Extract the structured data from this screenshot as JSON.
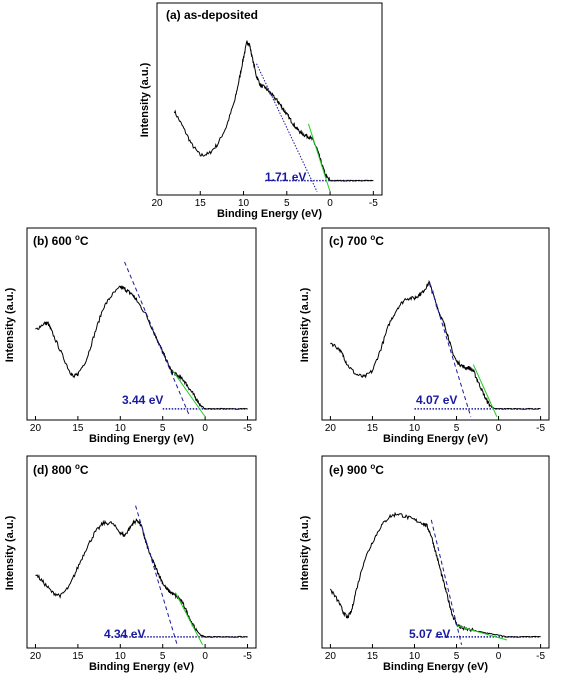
{
  "accent_colors": {
    "spectrum": "#000000",
    "fit_line": "#1a1aa0",
    "tail_line": "#22cc22",
    "gap_label": "#1a1aa0"
  },
  "chart_data": [
    {
      "type": "line",
      "title": "(a) as-deposited",
      "title_sup": "",
      "title_suffix": "",
      "xlabel": "Binding Energy (eV)",
      "ylabel": "Intensity (a.u.)",
      "xlim": [
        20,
        -6
      ],
      "xticks": [
        20,
        15,
        10,
        5,
        0,
        -5
      ],
      "ylim": [
        0,
        100
      ],
      "band_gap_label": "1.71 eV",
      "spectrum": {
        "x": [
          18,
          17,
          16,
          15,
          14,
          13,
          12,
          11,
          10.5,
          10,
          9.6,
          9.3,
          9,
          8.5,
          8,
          7.5,
          7,
          6.5,
          6,
          5.5,
          5,
          4.5,
          4,
          3.5,
          3,
          2.5,
          2,
          1.5,
          1,
          0.5,
          0,
          -1,
          -2,
          -3,
          -5
        ],
        "y": [
          48,
          38,
          27,
          20,
          21,
          27,
          38,
          55,
          68,
          82,
          92,
          90,
          82,
          70,
          64,
          63,
          60,
          57,
          54,
          50,
          46,
          42,
          38,
          35,
          33,
          32,
          30,
          24,
          15,
          7,
          4,
          4,
          4,
          4,
          4
        ]
      },
      "fit_line": {
        "x": [
          8.5,
          1.5
        ],
        "y": [
          78,
          -3
        ]
      },
      "tail_line": {
        "x": [
          2.5,
          0
        ],
        "y": [
          40,
          -3
        ]
      },
      "baseline": {
        "x": [
          7.5,
          -5
        ],
        "y": [
          4,
          4
        ]
      }
    },
    {
      "type": "line",
      "title": "(b) 600 ",
      "title_sup": "o",
      "title_suffix": "C",
      "xlabel": "Binding Energy (eV)",
      "ylabel": "Intensity (a.u.)",
      "xlim": [
        21,
        -6
      ],
      "xticks": [
        20,
        15,
        10,
        5,
        0,
        -5
      ],
      "ylim": [
        0,
        100
      ],
      "band_gap_label": "3.44 eV",
      "spectrum": {
        "x": [
          20,
          19,
          18.5,
          18,
          17,
          16,
          15.5,
          15,
          14,
          13,
          12,
          11,
          10,
          9.5,
          9,
          8.5,
          8,
          7,
          6,
          5.5,
          5,
          4.5,
          4,
          3.5,
          3,
          2.5,
          2,
          1.5,
          1,
          0.5,
          0,
          -1,
          -2,
          -3,
          -5
        ],
        "y": [
          52,
          56,
          56,
          50,
          38,
          26,
          22,
          24,
          33,
          50,
          66,
          74,
          79,
          78,
          76,
          74,
          70,
          62,
          50,
          44,
          38,
          32,
          26,
          24,
          22,
          20,
          16,
          12,
          8,
          4,
          2,
          2,
          2,
          2,
          2
        ]
      },
      "fit_line": {
        "x": [
          9.5,
          1.8
        ],
        "y": [
          95,
          -3
        ]
      },
      "tail_line": {
        "x": [
          3.8,
          0
        ],
        "y": [
          26,
          -3
        ]
      },
      "baseline": {
        "x": [
          5,
          -5
        ],
        "y": [
          2,
          2
        ]
      }
    },
    {
      "type": "line",
      "title": "(c)  700 ",
      "title_sup": "o",
      "title_suffix": "C",
      "xlabel": "Binding Energy (eV)",
      "ylabel": "Intensity (a.u.)",
      "xlim": [
        21,
        -6
      ],
      "xticks": [
        20,
        15,
        10,
        5,
        0,
        -5
      ],
      "ylim": [
        0,
        100
      ],
      "band_gap_label": "4.07 eV",
      "spectrum": {
        "x": [
          20,
          19,
          18.5,
          18,
          17,
          16,
          15,
          14,
          13,
          12,
          11,
          10,
          9.5,
          9,
          8.5,
          8.2,
          8,
          7.5,
          7,
          6.5,
          6,
          5.5,
          5,
          4.5,
          4,
          3.5,
          3,
          2.5,
          2,
          1.5,
          1,
          0.5,
          0,
          -1,
          -3,
          -5
        ],
        "y": [
          44,
          40,
          36,
          30,
          24,
          22,
          26,
          40,
          56,
          66,
          72,
          72,
          74,
          76,
          80,
          82,
          78,
          70,
          62,
          56,
          48,
          38,
          32,
          30,
          28,
          28,
          26,
          20,
          14,
          8,
          4,
          2,
          2,
          2,
          2,
          2
        ]
      },
      "fit_line": {
        "x": [
          8.2,
          3.3
        ],
        "y": [
          82,
          -3
        ]
      },
      "tail_line": {
        "x": [
          3,
          0.2
        ],
        "y": [
          30,
          -3
        ]
      },
      "baseline": {
        "x": [
          10,
          -5
        ],
        "y": [
          2,
          2
        ]
      }
    },
    {
      "type": "line",
      "title": "(d) 800 ",
      "title_sup": "o",
      "title_suffix": "C",
      "xlabel": "Binding Energy (eV)",
      "ylabel": "Intensity (a.u.)",
      "xlim": [
        21,
        -6
      ],
      "xticks": [
        20,
        15,
        10,
        5,
        0,
        -5
      ],
      "ylim": [
        0,
        100
      ],
      "band_gap_label": "4.34 eV",
      "spectrum": {
        "x": [
          20,
          19,
          18,
          17,
          16,
          15,
          14,
          13,
          12,
          11,
          10,
          9.5,
          9,
          8.5,
          8,
          7.5,
          7,
          6.5,
          6,
          5.5,
          5,
          4.5,
          4,
          3.5,
          3,
          2.5,
          2,
          1.5,
          1,
          0.5,
          0,
          -1,
          -3,
          -5
        ],
        "y": [
          42,
          36,
          30,
          28,
          34,
          46,
          58,
          68,
          74,
          74,
          68,
          66,
          70,
          74,
          76,
          72,
          62,
          54,
          48,
          42,
          36,
          32,
          30,
          28,
          26,
          22,
          16,
          10,
          6,
          3,
          2,
          2,
          2,
          2
        ]
      },
      "fit_line": {
        "x": [
          8.2,
          3.3
        ],
        "y": [
          85,
          -3
        ]
      },
      "tail_line": {
        "x": [
          3.5,
          0.3
        ],
        "y": [
          30,
          -3
        ]
      },
      "baseline": {
        "x": [
          10,
          -5
        ],
        "y": [
          2,
          2
        ]
      }
    },
    {
      "type": "line",
      "title": "(e) 900 ",
      "title_sup": "o",
      "title_suffix": "C",
      "xlabel": "Binding Energy (eV)",
      "ylabel": "Intensity (a.u.)",
      "xlim": [
        21,
        -6
      ],
      "xticks": [
        20,
        15,
        10,
        5,
        0,
        -5
      ],
      "ylim": [
        0,
        100
      ],
      "band_gap_label": "5.07 eV",
      "spectrum": {
        "x": [
          20,
          19,
          18.5,
          18,
          17.5,
          17,
          16,
          15,
          14,
          13,
          12,
          11,
          10,
          9,
          8.5,
          8,
          7.5,
          7,
          6.5,
          6,
          5.5,
          5,
          4.5,
          4,
          3,
          2,
          1,
          0,
          -1,
          -3,
          -5
        ],
        "y": [
          32,
          24,
          18,
          14,
          18,
          30,
          50,
          62,
          72,
          78,
          80,
          78,
          76,
          74,
          72,
          66,
          56,
          46,
          36,
          26,
          16,
          10,
          8,
          7,
          6,
          5,
          4,
          3,
          2,
          2,
          2
        ]
      },
      "fit_line": {
        "x": [
          8,
          4.4
        ],
        "y": [
          76,
          -3
        ]
      },
      "tail_line": {
        "x": [
          5,
          -1
        ],
        "y": [
          9,
          0
        ]
      },
      "baseline": {
        "x": [
          7.5,
          -5
        ],
        "y": [
          2,
          2
        ]
      }
    }
  ]
}
